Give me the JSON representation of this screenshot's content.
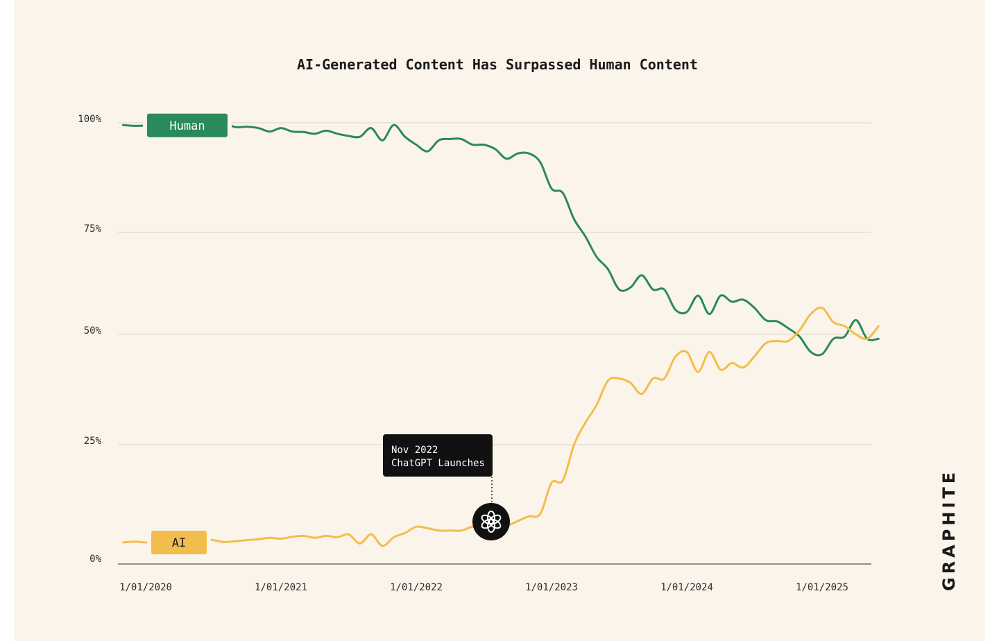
{
  "chart_data": {
    "type": "line",
    "title": "AI-Generated Content Has Surpassed Human Content",
    "y_ticks": [
      "0%",
      "25%",
      "50%",
      "75%",
      "100%"
    ],
    "x_ticks": [
      "1/01/2020",
      "1/01/2021",
      "1/01/2022",
      "1/01/2023",
      "1/01/2024",
      "1/01/2025"
    ],
    "ylim": [
      0,
      100
    ],
    "xlim": [
      "2019-11",
      "2025-06"
    ],
    "grid": true,
    "x": [
      "2019-11",
      "2019-12",
      "2020-01",
      "2020-02",
      "2020-03",
      "2020-04",
      "2020-05",
      "2020-06",
      "2020-07",
      "2020-08",
      "2020-09",
      "2020-10",
      "2020-11",
      "2020-12",
      "2021-01",
      "2021-02",
      "2021-03",
      "2021-04",
      "2021-05",
      "2021-06",
      "2021-07",
      "2021-08",
      "2021-09",
      "2021-10",
      "2021-11",
      "2021-12",
      "2022-01",
      "2022-02",
      "2022-03",
      "2022-04",
      "2022-05",
      "2022-06",
      "2022-07",
      "2022-08",
      "2022-09",
      "2022-10",
      "2022-11",
      "2022-12",
      "2023-01",
      "2023-02",
      "2023-03",
      "2023-04",
      "2023-05",
      "2023-06",
      "2023-07",
      "2023-08",
      "2023-09",
      "2023-10",
      "2023-11",
      "2023-12",
      "2024-01",
      "2024-02",
      "2024-03",
      "2024-04",
      "2024-05",
      "2024-06",
      "2024-07",
      "2024-08",
      "2024-09",
      "2024-10",
      "2024-11",
      "2024-12",
      "2025-01",
      "2025-02",
      "2025-03",
      "2025-04",
      "2025-05",
      "2025-06"
    ],
    "series": [
      {
        "name": "Human",
        "color": "#2a8a5a",
        "values": [
          99.5,
          99.3,
          99.4,
          99.6,
          99.7,
          99.5,
          99.3,
          99.2,
          99.5,
          99.8,
          99.0,
          99.1,
          98.8,
          98.0,
          98.8,
          98.0,
          97.9,
          97.5,
          98.2,
          97.5,
          97.0,
          96.8,
          98.8,
          96.0,
          99.5,
          96.8,
          95.0,
          93.5,
          96.0,
          96.3,
          96.3,
          95.0,
          95.0,
          94.0,
          91.8,
          93.0,
          93.0,
          91.0,
          85.0,
          84.0,
          78.0,
          74.0,
          69.0,
          66.0,
          61.0,
          61.5,
          64.5,
          61.0,
          61.0,
          56.0,
          55.5,
          59.5,
          55.0,
          59.5,
          58.0,
          58.5,
          56.5,
          53.5,
          53.2,
          51.5,
          49.5,
          46.0,
          45.5,
          49.0,
          49.5,
          53.5,
          49.0,
          49.0
        ]
      },
      {
        "name": "AI",
        "color": "#f2bd4c",
        "values": [
          4.5,
          4.7,
          4.5,
          4.4,
          4.5,
          4.8,
          5.0,
          5.2,
          5.0,
          4.6,
          4.8,
          5.0,
          5.2,
          5.5,
          5.3,
          5.7,
          5.9,
          5.5,
          5.9,
          5.6,
          6.2,
          4.3,
          6.2,
          3.8,
          5.6,
          6.5,
          7.8,
          7.5,
          7.0,
          7.0,
          7.0,
          7.8,
          7.6,
          8.2,
          8.0,
          9.0,
          10.0,
          10.5,
          17.0,
          17.5,
          25.0,
          30.0,
          34.0,
          39.5,
          40.0,
          39.0,
          36.5,
          40.0,
          40.0,
          45.0,
          46.0,
          41.5,
          46.0,
          42.0,
          43.5,
          42.5,
          45.0,
          48.0,
          48.5,
          48.5,
          51.0,
          55.0,
          56.5,
          53.0,
          52.0,
          50.0,
          49.0,
          52.0
        ]
      }
    ],
    "legend": "inline-labels",
    "annotation": {
      "date": "2022-11",
      "title": "Nov 2022",
      "subtitle": "ChatGPT Launches",
      "icon": "openai-logo-icon"
    }
  },
  "brand": {
    "name": "GRAPHITE"
  },
  "colors": {
    "background": "#fbf4ea",
    "human": "#2a8a5a",
    "ai": "#f2bd4c",
    "grid": "#d9d4cb",
    "axis": "#555555",
    "annotation_bg": "#111111"
  }
}
